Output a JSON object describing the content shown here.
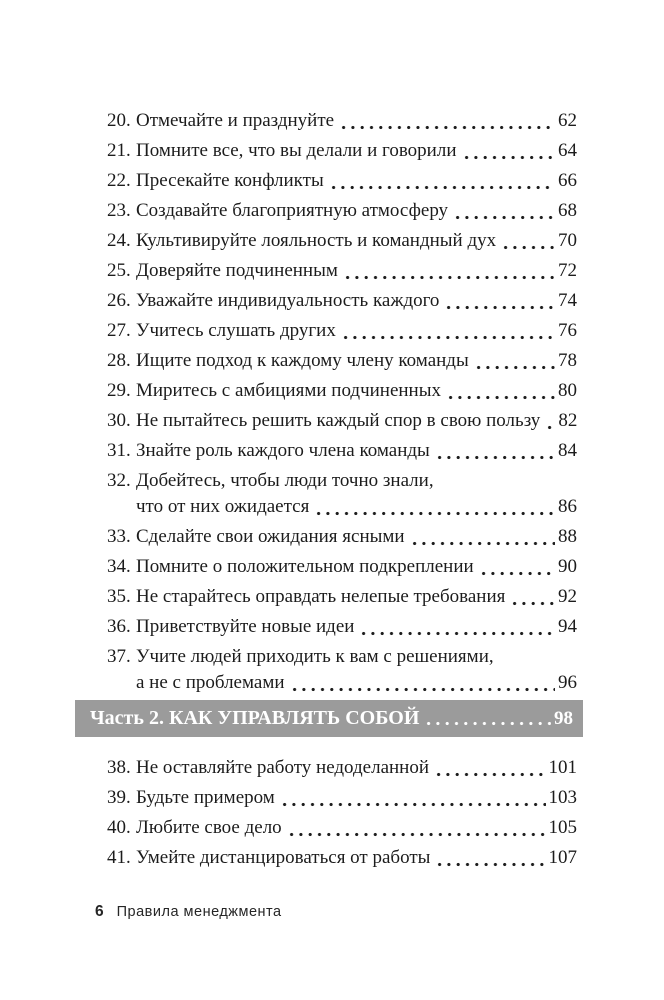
{
  "colors": {
    "page_background": "#ffffff",
    "text": "#1c1c1c",
    "section_bar_background": "#9b9b9b",
    "section_bar_text": "#ffffff"
  },
  "toc": {
    "entries": [
      {
        "num": "20.",
        "lines": [
          "Отмечайте и празднуйте"
        ],
        "page": "62"
      },
      {
        "num": "21.",
        "lines": [
          "Помните все, что вы делали и говорили"
        ],
        "page": "64"
      },
      {
        "num": "22.",
        "lines": [
          "Пресекайте конфликты"
        ],
        "page": "66"
      },
      {
        "num": "23.",
        "lines": [
          "Создавайте благоприятную атмосферу"
        ],
        "page": "68"
      },
      {
        "num": "24.",
        "lines": [
          "Культивируйте лояльность и командный дух"
        ],
        "page": "70"
      },
      {
        "num": "25.",
        "lines": [
          "Доверяйте подчиненным"
        ],
        "page": "72"
      },
      {
        "num": "26.",
        "lines": [
          "Уважайте индивидуальность каждого"
        ],
        "page": "74"
      },
      {
        "num": "27.",
        "lines": [
          "Учитесь слушать других"
        ],
        "page": "76"
      },
      {
        "num": "28.",
        "lines": [
          "Ищите подход к каждому члену команды"
        ],
        "page": "78"
      },
      {
        "num": "29.",
        "lines": [
          "Миритесь с амбициями подчиненных"
        ],
        "page": "80"
      },
      {
        "num": "30.",
        "lines": [
          "Не пытайтесь решить каждый спор в свою пользу"
        ],
        "page": "82"
      },
      {
        "num": "31.",
        "lines": [
          "Знайте роль каждого члена команды"
        ],
        "page": "84"
      },
      {
        "num": "32.",
        "lines": [
          "Добейтесь, чтобы люди точно знали,",
          "что от них ожидается"
        ],
        "page": "86"
      },
      {
        "num": "33.",
        "lines": [
          "Сделайте свои ожидания ясными"
        ],
        "page": "88"
      },
      {
        "num": "34.",
        "lines": [
          "Помните о положительном подкреплении"
        ],
        "page": "90"
      },
      {
        "num": "35.",
        "lines": [
          "Не старайтесь оправдать нелепые требования"
        ],
        "page": "92"
      },
      {
        "num": "36.",
        "lines": [
          "Приветствуйте новые идеи"
        ],
        "page": "94"
      },
      {
        "num": "37.",
        "lines": [
          "Учите людей приходить к вам с решениями,",
          "а не с проблемами"
        ],
        "page": "96"
      },
      {
        "type": "section",
        "label": "Часть 2. КАК УПРАВЛЯТЬ СОБОЙ",
        "page": "98"
      },
      {
        "num": "38.",
        "lines": [
          "Не оставляйте работу недоделанной"
        ],
        "page": "101"
      },
      {
        "num": "39.",
        "lines": [
          "Будьте примером"
        ],
        "page": "103"
      },
      {
        "num": "40.",
        "lines": [
          "Любите свое дело"
        ],
        "page": "105"
      },
      {
        "num": "41.",
        "lines": [
          "Умейте дистанцироваться от работы"
        ],
        "page": "107"
      }
    ]
  },
  "footer": {
    "page_number": "6",
    "book_title": "Правила менеджмента"
  }
}
